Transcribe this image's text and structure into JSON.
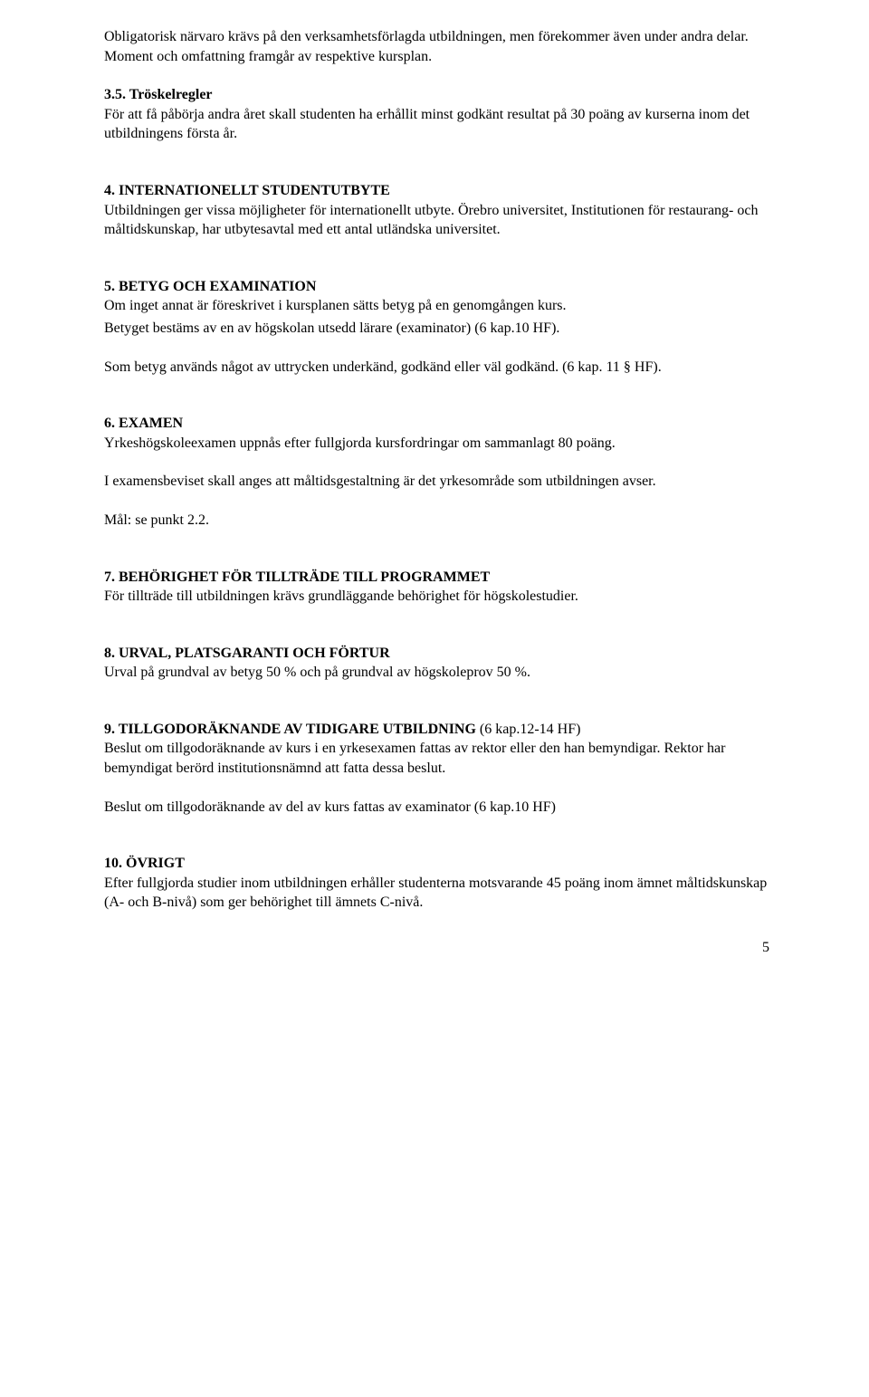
{
  "p1": "Obligatorisk närvaro krävs på den verksamhetsförlagda utbildningen, men förekommer även under andra delar. Moment och omfattning framgår av respektive kursplan.",
  "h2": "3.5. Tröskelregler",
  "p2": "För att få påbörja andra året skall studenten ha erhållit minst godkänt resultat på 30 poäng av kurserna inom det utbildningens första år.",
  "h3": "4. INTERNATIONELLT STUDENTUTBYTE",
  "p3": "Utbildningen ger vissa möjligheter för internationellt utbyte. Örebro universitet, Institutionen för restaurang- och måltidskunskap, har utbytesavtal med ett antal utländska universitet.",
  "h4": "5. BETYG OCH EXAMINATION",
  "p4a": "Om inget annat är föreskrivet i kursplanen sätts betyg på en genomgången kurs.",
  "p4b": "Betyget bestäms av en av högskolan utsedd lärare (examinator) (6 kap.10 HF).",
  "p5": "Som betyg används något av uttrycken underkänd, godkänd eller väl godkänd. (6 kap. 11 § HF).",
  "h5": "6. EXAMEN",
  "p6": "Yrkeshögskoleexamen uppnås efter fullgjorda kursfordringar om sammanlagt 80 poäng.",
  "p7": "I examensbeviset skall anges att måltidsgestaltning är det yrkesområde som utbildningen avser.",
  "p8": "Mål: se punkt 2.2.",
  "h6": "7. BEHÖRIGHET FÖR TILLTRÄDE TILL PROGRAMMET",
  "p9": "För tillträde till utbildningen krävs grundläggande behörighet för högskolestudier.",
  "h7": "8. URVAL, PLATSGARANTI OCH FÖRTUR",
  "p10": "Urval på grundval av betyg 50 % och på grundval av högskoleprov 50 %.",
  "h8a": "9. TILLGODORÄKNANDE AV TIDIGARE UTBILDNING ",
  "h8b": "(6 kap.12-14 HF)",
  "p11": "Beslut om tillgodoräknande av kurs i en yrkesexamen fattas av rektor eller den han bemyndigar. Rektor har bemyndigat berörd institutionsnämnd att fatta dessa beslut.",
  "p12": "Beslut om tillgodoräknande av del av kurs fattas av examinator (6 kap.10 HF)",
  "h9": "10. ÖVRIGT",
  "p13": "Efter fullgjorda studier inom utbildningen erhåller studenterna motsvarande 45 poäng inom ämnet måltidskunskap (A- och B-nivå) som ger behörighet till ämnets C-nivå.",
  "pageNumber": "5"
}
